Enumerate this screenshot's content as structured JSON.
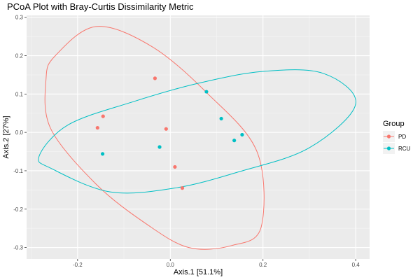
{
  "chart_data": {
    "type": "scatter",
    "title": "PCoA Plot with Bray-Curtis Dissimilarity Metric",
    "xlabel": "Axis.1   [51.1%]",
    "ylabel": "Axis.2   [27%]",
    "xlim": [
      -0.31,
      0.43
    ],
    "ylim": [
      -0.33,
      0.305
    ],
    "x_ticks": [
      -0.2,
      0.0,
      0.2,
      0.4
    ],
    "x_tick_labels": [
      "-0.2",
      "0.0",
      "0.2",
      "0.4"
    ],
    "y_ticks": [
      -0.3,
      -0.2,
      -0.1,
      0.0,
      0.1,
      0.2,
      0.3
    ],
    "y_tick_labels": [
      "-0.3",
      "-0.2",
      "-0.1",
      "0.0",
      "0.1",
      "0.2",
      "0.3"
    ],
    "grid": true,
    "legend": {
      "title": "Group",
      "placement": "right",
      "entries": [
        "PD",
        "RCU"
      ]
    },
    "series": [
      {
        "name": "PD",
        "color": "#F8766D",
        "points": [
          {
            "x": -0.033,
            "y": 0.141
          },
          {
            "x": -0.145,
            "y": 0.042
          },
          {
            "x": -0.157,
            "y": 0.012
          },
          {
            "x": -0.009,
            "y": 0.009
          },
          {
            "x": 0.01,
            "y": -0.09
          },
          {
            "x": 0.026,
            "y": -0.145
          }
        ],
        "ellipse": [
          [
            -0.248,
            0.2
          ],
          [
            -0.16,
            0.276
          ],
          [
            -0.04,
            0.224
          ],
          [
            0.08,
            0.102
          ],
          [
            0.187,
            -0.05
          ],
          [
            0.196,
            -0.247
          ],
          [
            0.132,
            -0.295
          ],
          [
            0.04,
            -0.3
          ],
          [
            -0.05,
            -0.24
          ],
          [
            -0.16,
            -0.135
          ],
          [
            -0.258,
            0.01
          ],
          [
            -0.268,
            0.14
          ]
        ]
      },
      {
        "name": "RCU",
        "color": "#00BFC4",
        "points": [
          {
            "x": 0.078,
            "y": 0.106
          },
          {
            "x": 0.11,
            "y": 0.036
          },
          {
            "x": 0.155,
            "y": -0.006
          },
          {
            "x": 0.138,
            "y": -0.021
          },
          {
            "x": -0.023,
            "y": -0.038
          },
          {
            "x": -0.146,
            "y": -0.056
          }
        ],
        "ellipse": [
          [
            0.4,
            0.074
          ],
          [
            0.33,
            0.154
          ],
          [
            0.2,
            0.159
          ],
          [
            0.06,
            0.128
          ],
          [
            -0.08,
            0.08
          ],
          [
            -0.22,
            0.02
          ],
          [
            -0.283,
            -0.062
          ],
          [
            -0.255,
            -0.095
          ],
          [
            -0.13,
            -0.155
          ],
          [
            0.01,
            -0.145
          ],
          [
            0.15,
            -0.102
          ],
          [
            0.3,
            -0.04
          ]
        ]
      }
    ]
  }
}
